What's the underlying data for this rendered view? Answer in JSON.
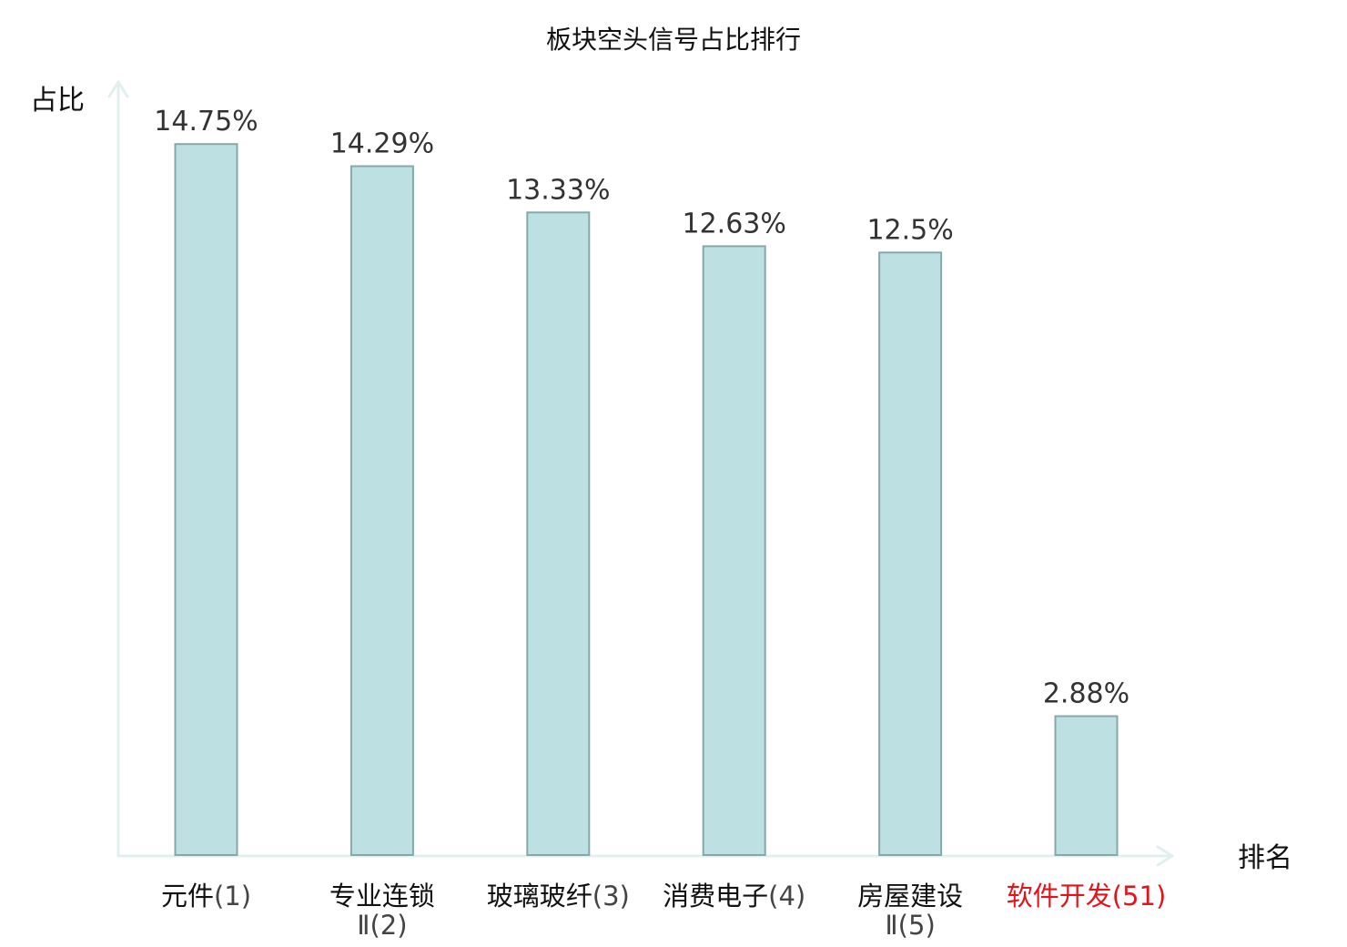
{
  "chart_data": {
    "type": "bar",
    "title": "板块空头信号占比排行",
    "ylabel": "占比",
    "xlabel": "排名",
    "ylim": [
      0,
      16
    ],
    "grid": false,
    "bar_color": "#bde0e3",
    "bar_border_color": "#86a8aa",
    "axis_color": "#dff0ee",
    "highlight_color": "#e0141a",
    "categories": [
      {
        "name": "元件",
        "rank": "(1)",
        "highlight": false
      },
      {
        "name": "专业连锁",
        "line2": "Ⅱ(2)",
        "highlight": false
      },
      {
        "name": "玻璃玻纤",
        "rank": "(3)",
        "highlight": false
      },
      {
        "name": "消费电子",
        "rank": "(4)",
        "highlight": false
      },
      {
        "name": "房屋建设",
        "line2": "Ⅱ(5)",
        "highlight": false
      },
      {
        "name": "软件开发",
        "rank": "(51)",
        "highlight": true
      }
    ],
    "values": [
      14.75,
      14.29,
      13.33,
      12.63,
      12.5,
      2.88
    ],
    "value_labels": [
      "14.75%",
      "14.29%",
      "13.33%",
      "12.63%",
      "12.5%",
      "2.88%"
    ]
  }
}
